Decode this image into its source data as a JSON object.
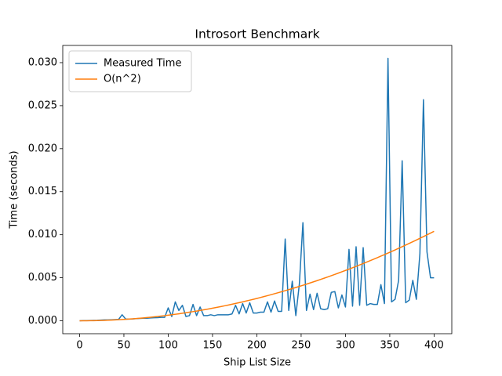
{
  "chart_data": {
    "type": "line",
    "title": "Introsort Benchmark",
    "xlabel": "Ship List Size",
    "ylabel": "Time (seconds)",
    "x": [
      0,
      4,
      8,
      12,
      16,
      20,
      24,
      28,
      32,
      36,
      40,
      44,
      48,
      52,
      56,
      60,
      64,
      68,
      72,
      76,
      80,
      84,
      88,
      92,
      96,
      100,
      104,
      108,
      112,
      116,
      120,
      124,
      128,
      132,
      136,
      140,
      144,
      148,
      152,
      156,
      160,
      164,
      168,
      172,
      176,
      180,
      184,
      188,
      192,
      196,
      200,
      204,
      208,
      212,
      216,
      220,
      224,
      228,
      232,
      236,
      240,
      244,
      248,
      252,
      256,
      260,
      264,
      268,
      272,
      276,
      280,
      284,
      288,
      292,
      296,
      300,
      304,
      308,
      312,
      316,
      320,
      324,
      328,
      332,
      336,
      340,
      344,
      348,
      352,
      356,
      360,
      364,
      368,
      372,
      376,
      380,
      384,
      388,
      392,
      396,
      400
    ],
    "series": [
      {
        "name": "Measured Time",
        "color": "#1f77b4",
        "values": [
          0,
          2e-05,
          3e-05,
          4e-05,
          5e-05,
          6e-05,
          8e-05,
          0.0001,
          0.0001,
          0.00012,
          0.00014,
          0.00016,
          0.0007,
          0.0002,
          0.0002,
          0.00022,
          0.00025,
          0.00027,
          0.0003,
          0.0003,
          0.00033,
          0.00035,
          0.00037,
          0.0004,
          0.0004,
          0.0015,
          0.0005,
          0.0022,
          0.0012,
          0.0018,
          0.0005,
          0.0006,
          0.0019,
          0.0006,
          0.0016,
          0.0006,
          0.0006,
          0.0007,
          0.0006,
          0.0007,
          0.0007,
          0.0007,
          0.0007,
          0.0008,
          0.0018,
          0.0008,
          0.002,
          0.0009,
          0.0021,
          0.0009,
          0.0009,
          0.001,
          0.001,
          0.0022,
          0.001,
          0.0023,
          0.0011,
          0.0011,
          0.0095,
          0.0012,
          0.0046,
          0.0006,
          0.0043,
          0.0114,
          0.0012,
          0.0031,
          0.0013,
          0.0032,
          0.0014,
          0.0013,
          0.0014,
          0.0033,
          0.0034,
          0.0015,
          0.003,
          0.0016,
          0.0083,
          0.0017,
          0.0086,
          0.0018,
          0.0085,
          0.0018,
          0.002,
          0.0019,
          0.0019,
          0.0042,
          0.002,
          0.0305,
          0.0022,
          0.0025,
          0.0047,
          0.0186,
          0.0021,
          0.0024,
          0.0047,
          0.0025,
          0.0078,
          0.0257,
          0.008,
          0.005,
          0.005
        ]
      },
      {
        "name": "O(n^2)",
        "color": "#ff7f0e",
        "values": [
          0,
          1.04e-06,
          4.16e-06,
          9.36e-06,
          1.664e-05,
          2.6e-05,
          3.744e-05,
          5.096e-05,
          6.656e-05,
          8.424e-05,
          0.000104,
          0.00012584,
          0.00014976,
          0.00017576,
          0.00020384,
          0.000234,
          0.00026624,
          0.00030056,
          0.00033696,
          0.00037544,
          0.000416,
          0.00045864,
          0.00050336,
          0.00055016,
          0.00059904,
          0.00065,
          0.00070304,
          0.00075816,
          0.00081536,
          0.00087464,
          0.000936,
          0.00099944,
          0.00106496,
          0.00113256,
          0.00120224,
          0.001274,
          0.00134784,
          0.00142376,
          0.00150176,
          0.00158184,
          0.001664,
          0.00174824,
          0.00183456,
          0.00192296,
          0.00201344,
          0.002106,
          0.00220064,
          0.00229736,
          0.00239616,
          0.00249704,
          0.0026,
          0.00270504,
          0.00281216,
          0.00292136,
          0.00303264,
          0.003146,
          0.00326144,
          0.00337896,
          0.00349856,
          0.00362024,
          0.003744,
          0.00386984,
          0.00399776,
          0.00412776,
          0.00425984,
          0.004394,
          0.00453024,
          0.00466856,
          0.00480896,
          0.00495144,
          0.005096,
          0.00524264,
          0.00539136,
          0.00554216,
          0.00569504,
          0.00585,
          0.00600704,
          0.00616616,
          0.00632736,
          0.00649064,
          0.006656,
          0.00682344,
          0.00699296,
          0.00716456,
          0.00733824,
          0.007514,
          0.00769184,
          0.00787176,
          0.00805376,
          0.00823784,
          0.008424,
          0.00861224,
          0.00880256,
          0.00899496,
          0.00918944,
          0.009386,
          0.00958464,
          0.00978536,
          0.00998816,
          0.01019304,
          0.0104
        ]
      }
    ],
    "xlim": [
      -19,
      420
    ],
    "ylim": [
      -0.0015,
      0.032
    ],
    "xticks": [
      0,
      50,
      100,
      150,
      200,
      250,
      300,
      350,
      400
    ],
    "yticks": [
      {
        "value": 0,
        "label": "0.000"
      },
      {
        "value": 0.005,
        "label": "0.005"
      },
      {
        "value": 0.01,
        "label": "0.010"
      },
      {
        "value": 0.015,
        "label": "0.015"
      },
      {
        "value": 0.02,
        "label": "0.020"
      },
      {
        "value": 0.025,
        "label": "0.025"
      },
      {
        "value": 0.03,
        "label": "0.030"
      }
    ],
    "legend": "upper left"
  }
}
